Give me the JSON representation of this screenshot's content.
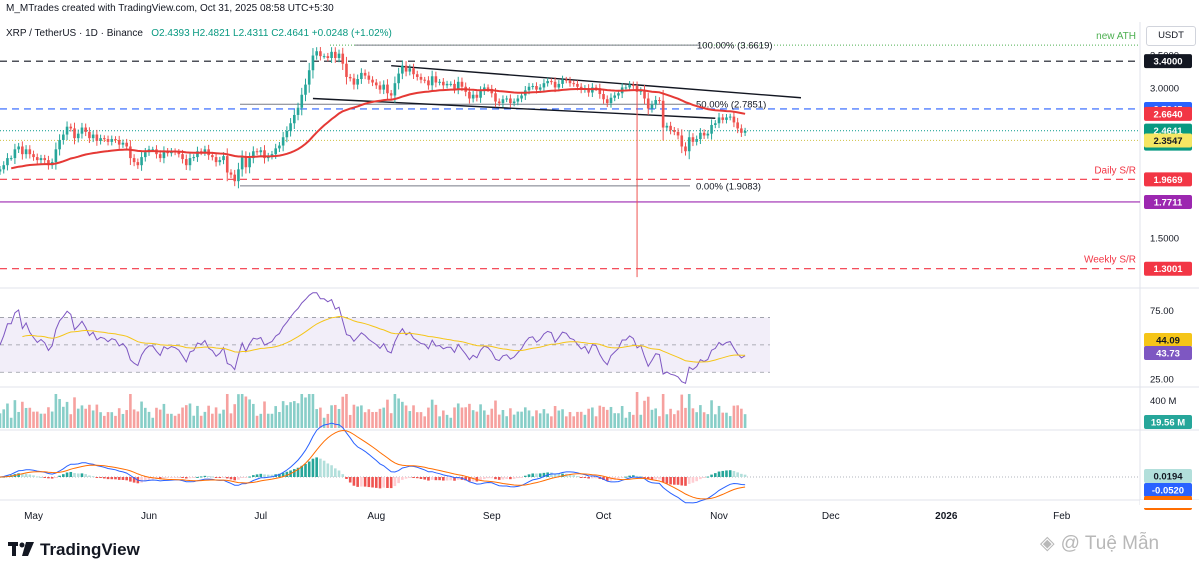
{
  "header": {
    "created_by": "M_MTrades created with TradingView.com, Oct 31, 2025 08:58 UTC+5:30",
    "symbol_line": "XRP / TetherUS · 1D · Binance",
    "o": "O2.4393",
    "h": "H2.4821",
    "l": "L2.4311",
    "c": "C2.4641",
    "change": "+0.0248 (+1.02%)",
    "currency": "USDT"
  },
  "brand": "TradingView",
  "watermark": "@ Tuệ Mẫn",
  "colors": {
    "up": "#26a69a",
    "down": "#ef5350",
    "ema": "#e53935",
    "rsi": "#7e57c2",
    "rsi_ma": "#f5c518",
    "macd": "#2962ff",
    "signal": "#ff6d00",
    "support_red": "#f23645",
    "purple": "#9c27b0",
    "green": "#4caf50",
    "blue": "#2962ff",
    "black": "#131722"
  },
  "chart_data": [
    {
      "type": "candlestick",
      "title": "XRP / TetherUS · 1D · Binance",
      "ylim": [
        1.2,
        3.75
      ],
      "y_scale": "log",
      "price_ticks": [
        "3.5000",
        "3.0000",
        "2.5000",
        "2.0000",
        "1.5000"
      ],
      "price_tick_values": [
        3.5,
        3.0,
        2.5,
        2.0,
        1.5
      ],
      "x_labels": [
        "May",
        "Jun",
        "Jul",
        "Aug",
        "Sep",
        "Oct",
        "Nov",
        "Dec",
        "2026",
        "Feb"
      ],
      "x_start": "2025-04-22",
      "x_end": "2026-02-22",
      "ohlc_start": "2025-04-22",
      "close": [
        2.06,
        2.1,
        2.17,
        2.17,
        2.26,
        2.29,
        2.21,
        2.26,
        2.21,
        2.18,
        2.15,
        2.17,
        2.15,
        2.1,
        2.13,
        2.26,
        2.36,
        2.42,
        2.51,
        2.49,
        2.38,
        2.43,
        2.5,
        2.45,
        2.38,
        2.42,
        2.35,
        2.38,
        2.37,
        2.34,
        2.37,
        2.36,
        2.31,
        2.33,
        2.29,
        2.17,
        2.13,
        2.1,
        2.18,
        2.23,
        2.26,
        2.26,
        2.21,
        2.17,
        2.24,
        2.22,
        2.24,
        2.23,
        2.21,
        2.16,
        2.1,
        2.17,
        2.18,
        2.24,
        2.23,
        2.26,
        2.2,
        2.18,
        2.13,
        2.15,
        2.19,
        2.03,
        2.01,
        1.95,
        2.06,
        2.18,
        2.08,
        2.17,
        2.24,
        2.23,
        2.25,
        2.17,
        2.19,
        2.21,
        2.27,
        2.3,
        2.39,
        2.46,
        2.55,
        2.65,
        2.74,
        2.91,
        3.05,
        3.26,
        3.49,
        3.56,
        3.48,
        3.48,
        3.45,
        3.55,
        3.45,
        3.52,
        3.36,
        3.16,
        3.14,
        3.05,
        3.13,
        3.22,
        3.18,
        3.12,
        3.08,
        3.04,
        2.98,
        3.05,
        2.93,
        2.9,
        3.07,
        3.21,
        3.33,
        3.24,
        3.29,
        3.2,
        3.16,
        3.12,
        3.11,
        3.04,
        3.17,
        3.08,
        3.09,
        3.04,
        3.06,
        3.06,
        2.99,
        3.09,
        3.02,
        2.95,
        2.86,
        2.91,
        2.87,
        2.96,
        3.01,
        2.99,
        2.93,
        2.82,
        2.8,
        2.85,
        2.86,
        2.8,
        2.82,
        2.86,
        2.9,
        2.97,
        3.02,
        3.03,
        2.98,
        3.01,
        3.07,
        3.1,
        3.09,
        3.01,
        3.06,
        3.12,
        3.11,
        3.07,
        3.06,
        3.02,
        2.98,
        3.0,
        2.94,
        3.01,
        3.0,
        2.92,
        2.85,
        2.8,
        2.87,
        2.9,
        2.93,
        3.01,
        3.01,
        3.05,
        3.03,
        2.95,
        2.97,
        2.86,
        2.73,
        2.78,
        2.84,
        2.83,
        2.5,
        2.52,
        2.47,
        2.45,
        2.41,
        2.29,
        2.24,
        2.39,
        2.34,
        2.37,
        2.44,
        2.41,
        2.43,
        2.53,
        2.55,
        2.62,
        2.59,
        2.62,
        2.63,
        2.56,
        2.49,
        2.44,
        2.46
      ],
      "ema_period": 50,
      "annotations": [
        {
          "label": "100.00% (3.6619)",
          "value": 3.6619,
          "kind": "fib"
        },
        {
          "label": "50.00% (2.7851)",
          "value": 2.7851,
          "kind": "fib"
        },
        {
          "label": "0.00% (1.9083)",
          "value": 1.9083,
          "kind": "fib"
        },
        {
          "label": "new ATH",
          "value": 3.6619,
          "kind": "text"
        },
        {
          "label": "Daily S/R",
          "value": 1.9669,
          "kind": "text"
        },
        {
          "label": "Weekly S/R",
          "value": 1.3001,
          "kind": "text"
        }
      ],
      "price_labels": [
        {
          "text": "3.4000",
          "value": 3.4,
          "color": "#131722"
        },
        {
          "text": "2.7245",
          "value": 2.7245,
          "color": "#2962ff"
        },
        {
          "text": "2.6640",
          "value": 2.664,
          "color": "#f23645"
        },
        {
          "text": "2.4641",
          "value": 2.4641,
          "color": "#089981"
        },
        {
          "text": "20:31:33",
          "value": 2.4641,
          "color": "#089981",
          "offset": 1
        },
        {
          "text": "2.3547",
          "value": 2.3547,
          "color": "#f5e663"
        },
        {
          "text": "1.9669",
          "value": 1.9669,
          "color": "#f23645"
        },
        {
          "text": "1.7711",
          "value": 1.7711,
          "color": "#9c27b0"
        },
        {
          "text": "1.3001",
          "value": 1.3001,
          "color": "#f23645"
        }
      ],
      "horizontal_levels": [
        {
          "value": 3.4,
          "style": "dashed",
          "color": "#131722"
        },
        {
          "value": 2.7245,
          "style": "dashed",
          "color": "#2962ff"
        },
        {
          "value": 1.9669,
          "style": "dashed",
          "color": "#f23645"
        },
        {
          "value": 1.7711,
          "style": "solid",
          "color": "#9c27b0"
        },
        {
          "value": 1.3001,
          "style": "dashed",
          "color": "#f23645"
        },
        {
          "value": 2.3547,
          "style": "dotted",
          "color": "#d4c75a"
        },
        {
          "value": 2.4641,
          "style": "dotted",
          "color": "#26a69a"
        },
        {
          "value": 3.6619,
          "style": "dotted",
          "color": "#4caf50"
        }
      ],
      "trendlines": [
        {
          "from": [
            "2025-08-05",
            3.33
          ],
          "to": [
            "2025-11-23",
            2.87
          ]
        },
        {
          "from": [
            "2025-07-15",
            2.86
          ],
          "to": [
            "2025-10-31",
            2.61
          ]
        }
      ],
      "spike_low": {
        "date": "2025-10-10",
        "value": 1.25
      }
    },
    {
      "type": "line",
      "title": "RSI",
      "ylim": [
        20,
        90
      ],
      "ticks": [
        "75.00",
        "25.00"
      ],
      "tick_values": [
        75,
        25
      ],
      "band": [
        70,
        30
      ],
      "mid": 50,
      "last_labels": [
        {
          "text": "44.09",
          "value": 44.09,
          "color": "#f5c518"
        },
        {
          "text": "43.73",
          "value": 43.73,
          "color": "#7e57c2"
        }
      ]
    },
    {
      "type": "bar",
      "title": "Volume",
      "ticks": [
        "400 M"
      ],
      "tick_values": [
        400
      ],
      "last_label": "19.56 M",
      "last_value": 19.56
    },
    {
      "type": "line",
      "title": "MACD",
      "last_labels": [
        {
          "text": "0.0194",
          "value": 0.0194,
          "color": "#26a69a"
        },
        {
          "text": "-0.0520",
          "value": -0.052,
          "color": "#2962ff"
        },
        {
          "text": "-0.0714",
          "value": -0.0714,
          "color": "#ff6d00"
        }
      ]
    }
  ]
}
